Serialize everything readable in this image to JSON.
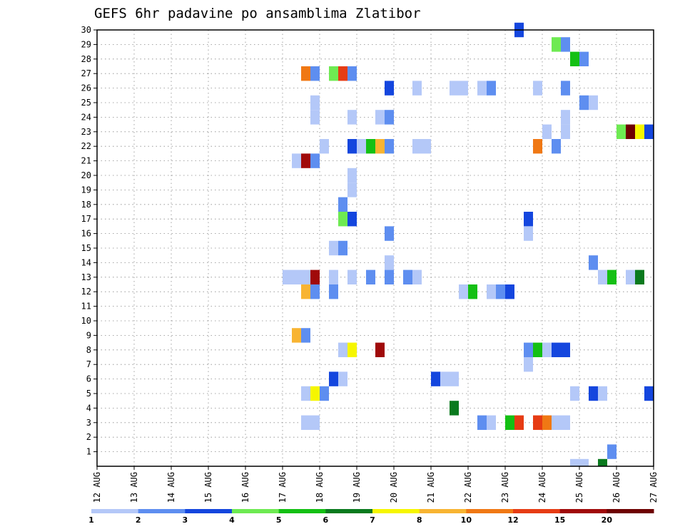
{
  "chart_data": {
    "type": "heatmap",
    "title": "GEFS 6hr padavine po ansamblima Zlatibor",
    "xlabel": "",
    "ylabel": "",
    "x_tick_labels": [
      "12 AUG",
      "13 AUG",
      "14 AUG",
      "15 AUG",
      "16 AUG",
      "17 AUG",
      "18 AUG",
      "19 AUG",
      "20 AUG",
      "21 AUG",
      "22 AUG",
      "23 AUG",
      "24 AUG",
      "25 AUG",
      "26 AUG",
      "27 AUG"
    ],
    "xlim_days": [
      12,
      27
    ],
    "x_unit": "day of August",
    "y_tick_labels": [
      "1",
      "2",
      "3",
      "4",
      "5",
      "6",
      "7",
      "8",
      "9",
      "10",
      "11",
      "12",
      "13",
      "14",
      "15",
      "16",
      "17",
      "18",
      "19",
      "20",
      "21",
      "22",
      "23",
      "24",
      "25",
      "26",
      "27",
      "28",
      "29",
      "30"
    ],
    "ylim": [
      0,
      30
    ],
    "y_unit": "ensemble member",
    "grid": true,
    "cell_width_hours": 6,
    "colorbar": {
      "tick_labels": [
        "1",
        "2",
        "3",
        "4",
        "5",
        "6",
        "7",
        "8",
        "10",
        "12",
        "15",
        "20"
      ],
      "bins": [
        {
          "min": 1,
          "max": 2,
          "color": "#b4c8f8"
        },
        {
          "min": 2,
          "max": 3,
          "color": "#5e8ef0"
        },
        {
          "min": 3,
          "max": 4,
          "color": "#1446de"
        },
        {
          "min": 4,
          "max": 5,
          "color": "#6eea52"
        },
        {
          "min": 5,
          "max": 6,
          "color": "#14c014"
        },
        {
          "min": 6,
          "max": 7,
          "color": "#0a7a1e"
        },
        {
          "min": 7,
          "max": 8,
          "color": "#f6f600"
        },
        {
          "min": 8,
          "max": 10,
          "color": "#f8b432"
        },
        {
          "min": 10,
          "max": 12,
          "color": "#f07814"
        },
        {
          "min": 12,
          "max": 15,
          "color": "#e63c14"
        },
        {
          "min": 15,
          "max": 20,
          "color": "#a00a0a"
        },
        {
          "min": 20,
          "max": 30,
          "color": "#6e0000"
        }
      ]
    },
    "cells": [
      {
        "member": 30,
        "cells": [
          [
            23.25,
            3
          ]
        ]
      },
      {
        "member": 29,
        "cells": [
          [
            24.25,
            4
          ],
          [
            24.5,
            2
          ]
        ]
      },
      {
        "member": 28,
        "cells": [
          [
            24.75,
            5
          ],
          [
            25.0,
            2
          ]
        ]
      },
      {
        "member": 27,
        "cells": [
          [
            17.5,
            10
          ],
          [
            17.75,
            2
          ],
          [
            18.25,
            4
          ],
          [
            18.5,
            12
          ],
          [
            18.75,
            2
          ]
        ]
      },
      {
        "member": 26,
        "cells": [
          [
            19.75,
            3
          ],
          [
            20.5,
            1
          ],
          [
            21.5,
            1
          ],
          [
            21.75,
            1
          ],
          [
            22.25,
            1
          ],
          [
            22.5,
            2
          ],
          [
            23.75,
            1
          ],
          [
            24.5,
            2
          ]
        ]
      },
      {
        "member": 25,
        "cells": [
          [
            17.75,
            1
          ],
          [
            25.0,
            2
          ],
          [
            25.25,
            1
          ]
        ]
      },
      {
        "member": 24,
        "cells": [
          [
            17.75,
            1
          ],
          [
            18.75,
            1
          ],
          [
            19.5,
            1
          ],
          [
            19.75,
            2
          ],
          [
            24.5,
            1
          ]
        ]
      },
      {
        "member": 23,
        "cells": [
          [
            24.0,
            1
          ],
          [
            24.5,
            1
          ],
          [
            26.0,
            4
          ],
          [
            26.25,
            20
          ],
          [
            26.5,
            7
          ],
          [
            26.75,
            3
          ]
        ]
      },
      {
        "member": 22,
        "cells": [
          [
            18.0,
            1
          ],
          [
            18.75,
            3
          ],
          [
            19.0,
            1
          ],
          [
            19.25,
            5
          ],
          [
            19.5,
            8
          ],
          [
            19.75,
            2
          ],
          [
            20.5,
            1
          ],
          [
            20.75,
            1
          ],
          [
            23.75,
            10
          ],
          [
            24.25,
            2
          ]
        ]
      },
      {
        "member": 21,
        "cells": [
          [
            17.25,
            1
          ],
          [
            17.5,
            15
          ],
          [
            17.75,
            2
          ]
        ]
      },
      {
        "member": 20,
        "cells": [
          [
            18.75,
            1
          ]
        ]
      },
      {
        "member": 19,
        "cells": [
          [
            18.75,
            1
          ]
        ]
      },
      {
        "member": 18,
        "cells": [
          [
            18.5,
            2
          ]
        ]
      },
      {
        "member": 17,
        "cells": [
          [
            18.5,
            4
          ],
          [
            18.75,
            3
          ],
          [
            23.5,
            3
          ]
        ]
      },
      {
        "member": 16,
        "cells": [
          [
            19.75,
            2
          ],
          [
            23.5,
            1
          ]
        ]
      },
      {
        "member": 15,
        "cells": [
          [
            18.25,
            1
          ],
          [
            18.5,
            2
          ]
        ]
      },
      {
        "member": 14,
        "cells": [
          [
            19.75,
            1
          ],
          [
            25.25,
            2
          ]
        ]
      },
      {
        "member": 13,
        "cells": [
          [
            17.0,
            1
          ],
          [
            17.25,
            1
          ],
          [
            17.5,
            1
          ],
          [
            17.75,
            15
          ],
          [
            18.25,
            1
          ],
          [
            18.75,
            1
          ],
          [
            19.25,
            2
          ],
          [
            19.75,
            2
          ],
          [
            20.25,
            2
          ],
          [
            20.5,
            1
          ],
          [
            25.5,
            1
          ],
          [
            25.75,
            5
          ],
          [
            26.25,
            1
          ],
          [
            26.5,
            6
          ]
        ]
      },
      {
        "member": 12,
        "cells": [
          [
            17.5,
            8
          ],
          [
            17.75,
            2
          ],
          [
            18.25,
            2
          ],
          [
            21.75,
            1
          ],
          [
            22.0,
            5
          ],
          [
            22.5,
            1
          ],
          [
            22.75,
            2
          ],
          [
            23.0,
            3
          ]
        ]
      },
      {
        "member": 9,
        "cells": [
          [
            17.25,
            8
          ],
          [
            17.5,
            2
          ]
        ]
      },
      {
        "member": 8,
        "cells": [
          [
            18.5,
            1
          ],
          [
            18.75,
            7
          ],
          [
            19.5,
            15
          ],
          [
            23.5,
            2
          ],
          [
            23.75,
            5
          ],
          [
            24.0,
            1
          ],
          [
            24.25,
            3
          ],
          [
            24.5,
            3
          ]
        ]
      },
      {
        "member": 7,
        "cells": [
          [
            23.5,
            1
          ]
        ]
      },
      {
        "member": 6,
        "cells": [
          [
            18.25,
            3
          ],
          [
            18.5,
            1
          ],
          [
            21.0,
            3
          ],
          [
            21.25,
            1
          ],
          [
            21.5,
            1
          ]
        ]
      },
      {
        "member": 5,
        "cells": [
          [
            17.5,
            1
          ],
          [
            17.75,
            7
          ],
          [
            18.0,
            2
          ],
          [
            24.75,
            1
          ],
          [
            25.25,
            3
          ],
          [
            25.5,
            1
          ],
          [
            26.75,
            3
          ]
        ]
      },
      {
        "member": 4,
        "cells": [
          [
            21.5,
            6
          ]
        ]
      },
      {
        "member": 3,
        "cells": [
          [
            17.5,
            1
          ],
          [
            17.75,
            1
          ],
          [
            22.25,
            2
          ],
          [
            22.5,
            1
          ],
          [
            23.0,
            5
          ],
          [
            23.25,
            12
          ],
          [
            23.75,
            12
          ],
          [
            24.0,
            10
          ],
          [
            24.25,
            1
          ],
          [
            24.5,
            1
          ]
        ]
      },
      {
        "member": 1,
        "cells": [
          [
            25.75,
            2
          ]
        ]
      },
      {
        "member": 0,
        "cells": [
          [
            24.75,
            1
          ],
          [
            25.0,
            1
          ],
          [
            25.5,
            6
          ]
        ]
      }
    ]
  }
}
